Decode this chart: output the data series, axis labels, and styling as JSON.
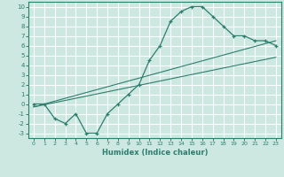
{
  "xlabel": "Humidex (Indice chaleur)",
  "xlim": [
    -0.5,
    23.5
  ],
  "ylim": [
    -3.5,
    10.5
  ],
  "xticks": [
    0,
    1,
    2,
    3,
    4,
    5,
    6,
    7,
    8,
    9,
    10,
    11,
    12,
    13,
    14,
    15,
    16,
    17,
    18,
    19,
    20,
    21,
    22,
    23
  ],
  "yticks": [
    -3,
    -2,
    -1,
    0,
    1,
    2,
    3,
    4,
    5,
    6,
    7,
    8,
    9,
    10
  ],
  "bg_color": "#cce8e0",
  "line_color": "#2e7d6e",
  "grid_color": "#ffffff",
  "line1_x": [
    0,
    1,
    2,
    3,
    4,
    5,
    6,
    7,
    8,
    9,
    10,
    11,
    12,
    13,
    14,
    15,
    16,
    17,
    18,
    19,
    20,
    21,
    22,
    23
  ],
  "line1_y": [
    0,
    0,
    -1.5,
    -2,
    -1,
    -3,
    -3,
    -1,
    0,
    1,
    2,
    4.5,
    6,
    8.5,
    9.5,
    10,
    10,
    9,
    8,
    7,
    7,
    6.5,
    6.5,
    6
  ],
  "line2_x": [
    0,
    23
  ],
  "line2_y": [
    -0.3,
    6.5
  ],
  "line3_x": [
    0,
    23
  ],
  "line3_y": [
    -0.3,
    4.8
  ]
}
